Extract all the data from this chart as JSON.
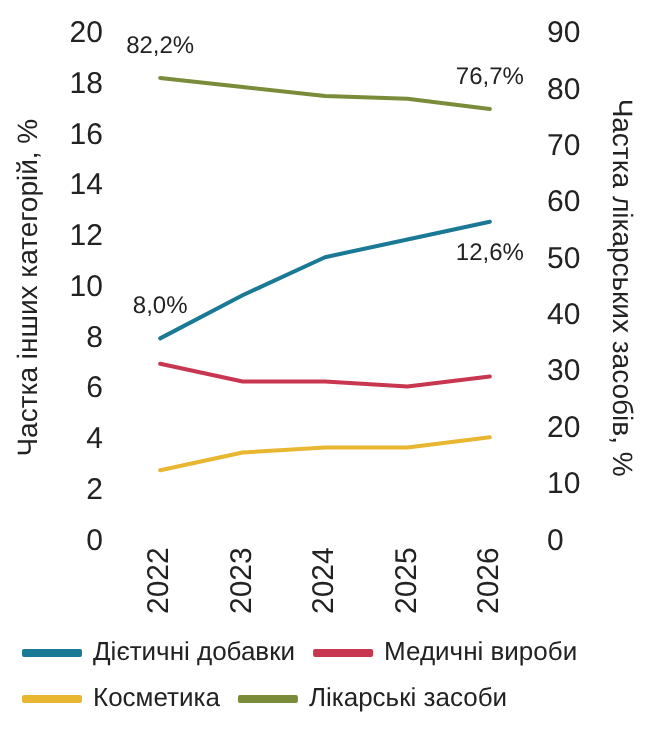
{
  "chart_data": {
    "type": "line",
    "categories": [
      "2022",
      "2023",
      "2024",
      "2025",
      "2026"
    ],
    "ylabel": "Частка інших категорій, %",
    "y2label": "Частка лікарських засобів, %",
    "ylim": [
      0,
      20
    ],
    "yticks": [
      0,
      2,
      4,
      6,
      8,
      10,
      12,
      14,
      16,
      18,
      20
    ],
    "y2lim": [
      0,
      90
    ],
    "y2ticks": [
      0,
      10,
      20,
      30,
      40,
      50,
      60,
      70,
      80,
      90
    ],
    "grid": false,
    "legend": "bottom",
    "marker": "none",
    "line_style": "solid",
    "series": [
      {
        "name": "Дієтичні добавки",
        "color": "#1a7a96",
        "values": [
          8.0,
          9.7,
          11.2,
          11.9,
          12.6
        ],
        "value_labels": [
          "8,0%",
          null,
          null,
          null,
          "12,6%"
        ]
      },
      {
        "name": "Медичні вироби",
        "color": "#c8364f",
        "values": [
          7.0,
          6.3,
          6.3,
          6.1,
          6.5
        ]
      },
      {
        "name": "Косметика",
        "color": "#e8b630",
        "values": [
          2.8,
          3.5,
          3.7,
          3.7,
          4.1
        ]
      },
      {
        "name": "Лікарські засоби",
        "color": "#7a8c3a",
        "axis": "y2",
        "values": [
          82.2,
          80.6,
          79.0,
          78.5,
          76.7
        ],
        "value_labels": [
          "82,2%",
          null,
          null,
          null,
          "76,7%"
        ]
      }
    ]
  }
}
